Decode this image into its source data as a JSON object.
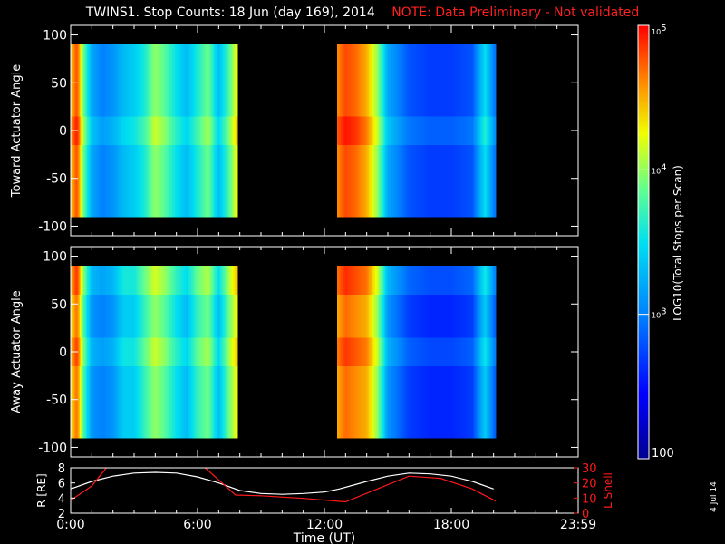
{
  "header": {
    "title": "TWINS1. Stop Counts: 18 Jun (day 169), 2014",
    "note": "NOTE: Data Preliminary - Not validated"
  },
  "colorbar": {
    "label": "LOG10(Total Stops per Scan)",
    "ticks": [
      "10^5",
      "10^4",
      "10^3",
      "100"
    ],
    "range": [
      100,
      100000
    ],
    "scale": "log"
  },
  "date_stamp": "4 Jul 14",
  "chart_data": [
    {
      "type": "heatmap",
      "title": "",
      "ylabel": "Toward Actuator Angle",
      "ylim": [
        -110,
        110
      ],
      "yticks": [
        100,
        50,
        0,
        -50,
        -100
      ],
      "xlim": [
        0,
        24
      ],
      "angle_range": [
        -90,
        90
      ],
      "data_intervals": [
        [
          0,
          7.9
        ],
        [
          12.6,
          20.1
        ]
      ],
      "value_scale": "log10 counts",
      "profile_log10": [
        [
          0,
          4.4
        ],
        [
          0.3,
          4.8
        ],
        [
          0.6,
          3.9
        ],
        [
          1.0,
          3.2
        ],
        [
          1.5,
          3.0
        ],
        [
          2.0,
          3.1
        ],
        [
          2.5,
          3.3
        ],
        [
          3.0,
          3.4
        ],
        [
          3.5,
          3.6
        ],
        [
          4.0,
          4.0
        ],
        [
          4.5,
          3.8
        ],
        [
          5.0,
          3.5
        ],
        [
          5.5,
          3.3
        ],
        [
          6.0,
          3.6
        ],
        [
          6.5,
          3.9
        ],
        [
          7.0,
          3.3
        ],
        [
          7.5,
          3.8
        ],
        [
          7.9,
          4.3
        ],
        [
          12.6,
          4.6
        ],
        [
          13.0,
          4.8
        ],
        [
          13.5,
          4.7
        ],
        [
          14.0,
          4.5
        ],
        [
          14.5,
          4.0
        ],
        [
          15.0,
          3.2
        ],
        [
          16.0,
          2.8
        ],
        [
          17.0,
          2.7
        ],
        [
          18.0,
          2.7
        ],
        [
          19.0,
          2.8
        ],
        [
          19.6,
          3.5
        ],
        [
          20.1,
          2.9
        ]
      ]
    },
    {
      "type": "heatmap",
      "title": "",
      "ylabel": "Away Actuator Angle",
      "ylim": [
        -110,
        110
      ],
      "yticks": [
        100,
        50,
        0,
        -50,
        -100
      ],
      "xlim": [
        0,
        24
      ],
      "angle_range": [
        -90,
        90
      ],
      "data_intervals": [
        [
          0,
          7.9
        ],
        [
          12.6,
          20.1
        ]
      ],
      "value_scale": "log10 counts",
      "profile_log10": [
        [
          0,
          4.3
        ],
        [
          0.3,
          4.7
        ],
        [
          0.6,
          3.8
        ],
        [
          1.0,
          3.1
        ],
        [
          1.5,
          3.0
        ],
        [
          2.0,
          3.1
        ],
        [
          2.5,
          3.4
        ],
        [
          3.0,
          3.4
        ],
        [
          3.5,
          3.7
        ],
        [
          4.0,
          4.0
        ],
        [
          4.5,
          3.8
        ],
        [
          5.0,
          3.5
        ],
        [
          5.5,
          3.3
        ],
        [
          6.0,
          3.7
        ],
        [
          6.5,
          3.9
        ],
        [
          7.0,
          3.3
        ],
        [
          7.5,
          3.9
        ],
        [
          7.9,
          4.3
        ],
        [
          12.6,
          4.5
        ],
        [
          13.0,
          4.7
        ],
        [
          13.5,
          4.6
        ],
        [
          14.0,
          4.5
        ],
        [
          14.5,
          4.0
        ],
        [
          15.0,
          3.1
        ],
        [
          16.0,
          2.7
        ],
        [
          17.0,
          2.6
        ],
        [
          18.0,
          2.6
        ],
        [
          19.0,
          2.7
        ],
        [
          19.6,
          3.4
        ],
        [
          20.1,
          2.8
        ]
      ]
    },
    {
      "type": "line",
      "title": "",
      "xlabel": "Time (UT)",
      "xlim": [
        0,
        24
      ],
      "xticks": [
        "0:00",
        "6:00",
        "12:00",
        "18:00",
        "23:59"
      ],
      "ylabel": "R [RE]",
      "ylim": [
        2,
        8
      ],
      "yticks": [
        2,
        4,
        6,
        8
      ],
      "y2label": "L Shell",
      "y2lim": [
        0,
        30
      ],
      "y2ticks": [
        0,
        10,
        20,
        30
      ],
      "series": [
        {
          "axis": "left",
          "color": "#ffffff",
          "points": [
            [
              0,
              5.2
            ],
            [
              1,
              6.2
            ],
            [
              2,
              6.9
            ],
            [
              3,
              7.3
            ],
            [
              4,
              7.4
            ],
            [
              5,
              7.3
            ],
            [
              6,
              6.8
            ],
            [
              7,
              6.0
            ],
            [
              8,
              5.0
            ],
            [
              9,
              4.6
            ],
            [
              10,
              4.5
            ],
            [
              11,
              4.6
            ],
            [
              12,
              4.8
            ],
            [
              12.7,
              5.2
            ],
            [
              14,
              6.2
            ],
            [
              15,
              6.9
            ],
            [
              16,
              7.3
            ],
            [
              17,
              7.2
            ],
            [
              18,
              6.9
            ],
            [
              19,
              6.2
            ],
            [
              20,
              5.2
            ]
          ]
        },
        {
          "axis": "right",
          "color": "#ff1a1a",
          "points": [
            [
              0,
              8.5
            ],
            [
              1,
              18
            ],
            [
              1.8,
              32
            ],
            [
              6.2,
              32
            ],
            [
              7.8,
              12
            ],
            [
              9,
              11.5
            ],
            [
              11,
              9.8
            ],
            [
              13,
              7.5
            ],
            [
              14.5,
              16
            ],
            [
              16,
              24.5
            ],
            [
              17.5,
              23
            ],
            [
              19,
              16
            ],
            [
              20.1,
              8
            ]
          ]
        }
      ]
    }
  ]
}
